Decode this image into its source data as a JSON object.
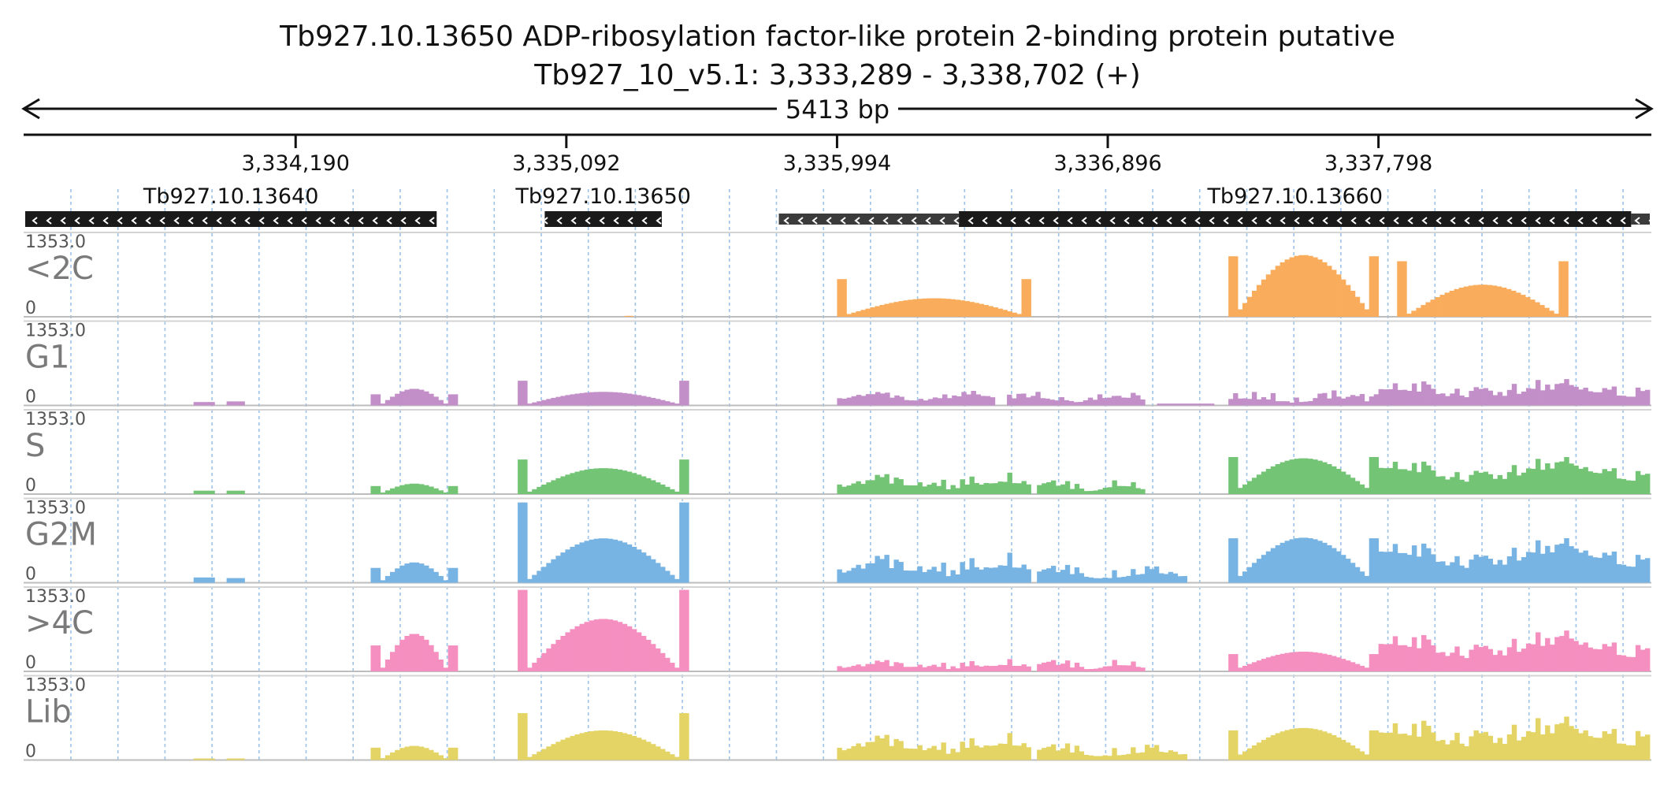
{
  "chart_data": {
    "type": "coverage",
    "title": "Tb927.10.13650  ADP-ribosylation factor-like protein 2-binding protein  putative",
    "subtitle": "Tb927_10_v5.1: 3,333,289 - 3,338,702 (+)",
    "span_label": "5413 bp",
    "region": {
      "start": 3333289,
      "end": 3338702
    },
    "ticks": [
      {
        "pos": 3334190,
        "label": "3,334,190"
      },
      {
        "pos": 3335092,
        "label": "3,335,092"
      },
      {
        "pos": 3335994,
        "label": "3,335,994"
      },
      {
        "pos": 3336896,
        "label": "3,336,896"
      },
      {
        "pos": 3337798,
        "label": "3,337,798"
      }
    ],
    "genes": [
      {
        "name": "Tb927.10.13640",
        "strand": "-",
        "start": 3333289,
        "end": 3334660,
        "cds": [
          3333289,
          3334660
        ]
      },
      {
        "name": "Tb927.10.13650",
        "strand": "-",
        "start": 3335020,
        "end": 3335410,
        "cds": [
          3335020,
          3335410
        ]
      },
      {
        "name": "Tb927.10.13660",
        "strand": "-",
        "start": 3335800,
        "end": 3338702,
        "cds": [
          3336400,
          3338640
        ]
      }
    ],
    "y_max_label": "1353.0",
    "y_min_label": "0",
    "ylim": [
      0,
      1353
    ],
    "tracks": [
      {
        "name": "<2C",
        "color": "#f9ad5c",
        "segments": [
          {
            "start": 3335286,
            "end": 3335314,
            "shape": "dip",
            "edge": 20,
            "mid": 15
          },
          {
            "start": 3335994,
            "end": 3336640,
            "shape": "arch",
            "edge": 610,
            "mid": 300,
            "lo": 45
          },
          {
            "start": 3337298,
            "end": 3337798,
            "shape": "arch",
            "edge": 980,
            "mid": 1000,
            "lo": 120
          },
          {
            "start": 3337860,
            "end": 3338430,
            "shape": "arch",
            "edge": 900,
            "mid": 520,
            "lo": 50
          }
        ]
      },
      {
        "name": "G1",
        "color": "#c38fc9",
        "segments": [
          {
            "start": 3333850,
            "end": 3333920,
            "shape": "flat",
            "level": 55
          },
          {
            "start": 3333960,
            "end": 3334020,
            "shape": "flat",
            "level": 65
          },
          {
            "start": 3334440,
            "end": 3334730,
            "shape": "arch",
            "edge": 180,
            "mid": 270,
            "lo": 30
          },
          {
            "start": 3334930,
            "end": 3335500,
            "shape": "arch",
            "edge": 400,
            "mid": 220,
            "lo": 30
          },
          {
            "start": 3335994,
            "end": 3336520,
            "shape": "bumpy",
            "base": 160,
            "amp": 80
          },
          {
            "start": 3336560,
            "end": 3337020,
            "shape": "bumpy",
            "base": 130,
            "amp": 100
          },
          {
            "start": 3337060,
            "end": 3337250,
            "shape": "flat",
            "level": 30
          },
          {
            "start": 3337298,
            "end": 3337798,
            "shape": "bumpy",
            "base": 110,
            "amp": 140
          },
          {
            "start": 3337798,
            "end": 3338702,
            "shape": "bumpy",
            "base": 260,
            "amp": 240
          }
        ]
      },
      {
        "name": "S",
        "color": "#74c476",
        "segments": [
          {
            "start": 3333850,
            "end": 3333920,
            "shape": "flat",
            "level": 55
          },
          {
            "start": 3333960,
            "end": 3334020,
            "shape": "flat",
            "level": 55
          },
          {
            "start": 3334440,
            "end": 3334730,
            "shape": "arch",
            "edge": 130,
            "mid": 170,
            "lo": 25
          },
          {
            "start": 3334930,
            "end": 3335500,
            "shape": "arch",
            "edge": 560,
            "mid": 420,
            "lo": 40
          },
          {
            "start": 3335994,
            "end": 3336640,
            "shape": "bumpy",
            "base": 180,
            "amp": 170
          },
          {
            "start": 3336660,
            "end": 3337020,
            "shape": "bumpy",
            "base": 120,
            "amp": 120
          },
          {
            "start": 3337298,
            "end": 3337798,
            "shape": "arch",
            "edge": 600,
            "mid": 580,
            "lo": 100
          },
          {
            "start": 3337798,
            "end": 3338702,
            "shape": "bumpy",
            "base": 420,
            "amp": 260
          }
        ]
      },
      {
        "name": "G2M",
        "color": "#78b4e3",
        "segments": [
          {
            "start": 3333850,
            "end": 3333920,
            "shape": "flat",
            "level": 85
          },
          {
            "start": 3333960,
            "end": 3334020,
            "shape": "flat",
            "level": 75
          },
          {
            "start": 3334440,
            "end": 3334730,
            "shape": "arch",
            "edge": 240,
            "mid": 330,
            "lo": 40
          },
          {
            "start": 3334930,
            "end": 3335500,
            "shape": "arch",
            "edge": 1300,
            "mid": 720,
            "lo": 60
          },
          {
            "start": 3335994,
            "end": 3336640,
            "shape": "bumpy",
            "base": 250,
            "amp": 240
          },
          {
            "start": 3336660,
            "end": 3337160,
            "shape": "bumpy",
            "base": 150,
            "amp": 150
          },
          {
            "start": 3337298,
            "end": 3337798,
            "shape": "arch",
            "edge": 720,
            "mid": 730,
            "lo": 110
          },
          {
            "start": 3337798,
            "end": 3338702,
            "shape": "bumpy",
            "base": 500,
            "amp": 320
          }
        ]
      },
      {
        "name": ">4C",
        "color": "#f48fc0",
        "segments": [
          {
            "start": 3334440,
            "end": 3334730,
            "shape": "arch",
            "edge": 420,
            "mid": 610,
            "lo": 60
          },
          {
            "start": 3334930,
            "end": 3335500,
            "shape": "arch",
            "edge": 1320,
            "mid": 850,
            "lo": 60
          },
          {
            "start": 3335994,
            "end": 3336640,
            "shape": "bumpy",
            "base": 90,
            "amp": 110
          },
          {
            "start": 3336660,
            "end": 3337020,
            "shape": "bumpy",
            "base": 90,
            "amp": 110
          },
          {
            "start": 3337298,
            "end": 3337798,
            "shape": "arch",
            "edge": 280,
            "mid": 320,
            "lo": 60
          },
          {
            "start": 3337798,
            "end": 3338702,
            "shape": "bumpy",
            "base": 440,
            "amp": 320
          }
        ]
      },
      {
        "name": "Lib",
        "color": "#e3d465",
        "segments": [
          {
            "start": 3333850,
            "end": 3333920,
            "shape": "flat",
            "level": 25
          },
          {
            "start": 3333960,
            "end": 3334020,
            "shape": "flat",
            "level": 25
          },
          {
            "start": 3334440,
            "end": 3334730,
            "shape": "arch",
            "edge": 200,
            "mid": 230,
            "lo": 30
          },
          {
            "start": 3334930,
            "end": 3335500,
            "shape": "arch",
            "edge": 760,
            "mid": 480,
            "lo": 50
          },
          {
            "start": 3335994,
            "end": 3336640,
            "shape": "bumpy",
            "base": 240,
            "amp": 200
          },
          {
            "start": 3336660,
            "end": 3337160,
            "shape": "bumpy",
            "base": 130,
            "amp": 150
          },
          {
            "start": 3337298,
            "end": 3337798,
            "shape": "arch",
            "edge": 480,
            "mid": 520,
            "lo": 90
          },
          {
            "start": 3337798,
            "end": 3338702,
            "shape": "bumpy",
            "base": 440,
            "amp": 380
          }
        ]
      }
    ]
  }
}
